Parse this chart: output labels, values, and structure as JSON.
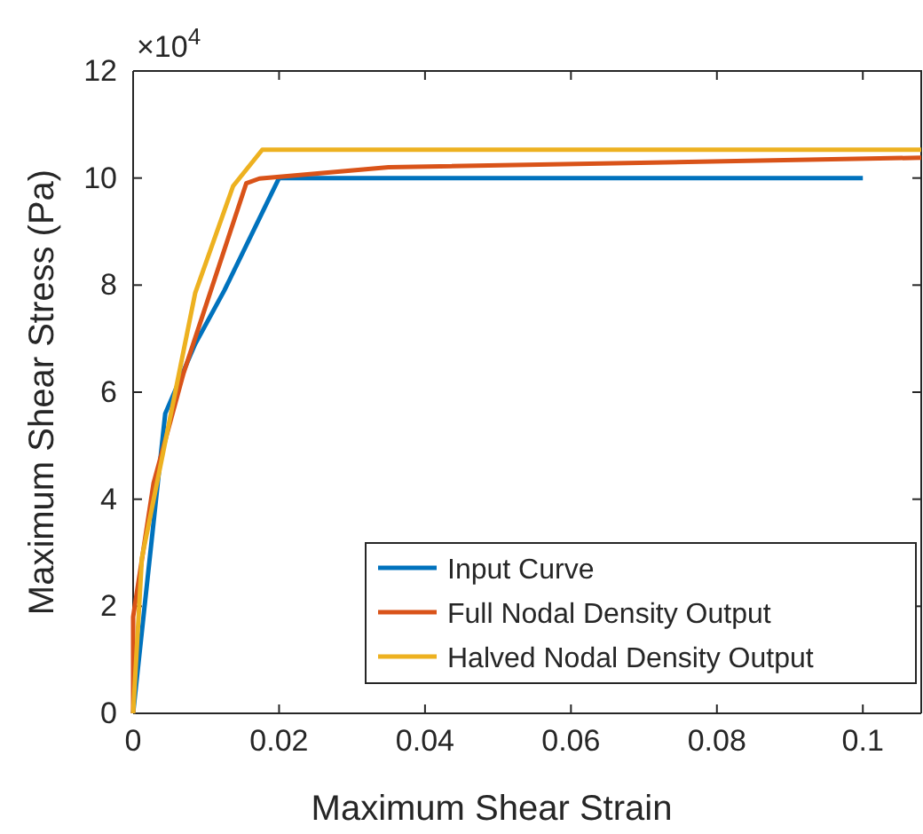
{
  "chart_data": {
    "type": "line",
    "xlabel": "Maximum Shear Strain",
    "ylabel": "Maximum Shear Stress (Pa)",
    "annotations": [
      "×10$^{4}$"
    ],
    "xlim": [
      0,
      0.108
    ],
    "xticks": [
      0,
      0.02,
      0.04,
      0.06,
      0.08,
      0.1
    ],
    "ylim": [
      0,
      12
    ],
    "yticks": [
      0,
      2,
      4,
      6,
      8,
      10,
      12
    ],
    "grid": false,
    "legend": "bottom right",
    "line_style": "solid",
    "marker": "none",
    "series": [
      {
        "name": "Input Curve",
        "color": "#0072bd",
        "x": [
          0,
          0.0044,
          0.0085,
          0.0125,
          0.02,
          0.1
        ],
        "values": [
          0,
          5.6,
          6.9,
          7.9,
          10,
          10
        ]
      },
      {
        "name": "Full Nodal Density Output",
        "color": "#d95319",
        "x": [
          0,
          0,
          0.0028,
          0.0069,
          0.0155,
          0.0173,
          0.035,
          0.108
        ],
        "values": [
          0,
          1.8,
          4.3,
          6.35,
          9.9,
          9.99,
          10.2,
          10.38
        ]
      },
      {
        "name": "Halved Nodal Density Output",
        "color": "#edb120",
        "x": [
          0,
          0.0012,
          0.0085,
          0.0137,
          0.0177,
          0.108
        ],
        "values": [
          0,
          2.9,
          7.85,
          9.85,
          10.53,
          10.53
        ]
      }
    ]
  }
}
